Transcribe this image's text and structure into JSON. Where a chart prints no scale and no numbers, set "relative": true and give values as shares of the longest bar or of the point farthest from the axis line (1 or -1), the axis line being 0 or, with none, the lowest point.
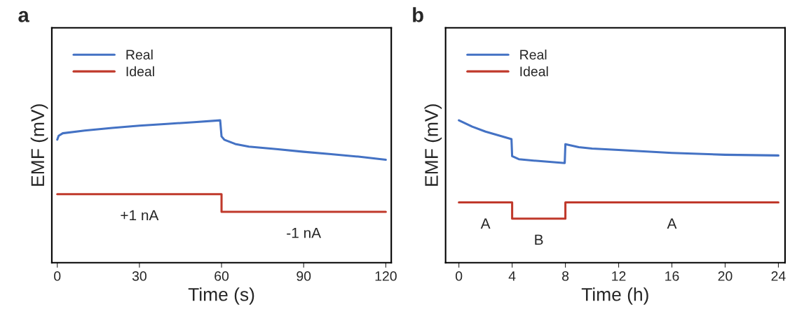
{
  "chart_data": [
    {
      "type": "line",
      "title": "a",
      "xlabel": "Time (s)",
      "ylabel": "EMF (mV)",
      "relative": true,
      "xlim": [
        -2,
        122
      ],
      "xticks": [
        0,
        30,
        60,
        90,
        120
      ],
      "legend": "top left",
      "grid": false,
      "series": [
        {
          "name": "Real",
          "color": "#4472c4",
          "x": [
            0,
            0.5,
            2,
            10,
            20,
            30,
            40,
            50,
            59.5,
            60,
            61,
            65,
            70,
            80,
            90,
            100,
            110,
            120
          ],
          "values": [
            0.864,
            0.891,
            0.909,
            0.928,
            0.947,
            0.962,
            0.975,
            0.987,
            1,
            0.887,
            0.864,
            0.834,
            0.815,
            0.798,
            0.779,
            0.762,
            0.745,
            0.723
          ]
        },
        {
          "name": "Ideal",
          "color": "#c0392b",
          "x": [
            0,
            60,
            60,
            120
          ],
          "values": [
            0.481,
            0.481,
            0.357,
            0.357
          ]
        }
      ],
      "annotations": [
        "+1 nA",
        "-1 nA"
      ]
    },
    {
      "type": "line",
      "title": "b",
      "xlabel": "Time (h)",
      "ylabel": "EMF (mV)",
      "relative": true,
      "xlim": [
        -1,
        24.5
      ],
      "xticks": [
        0,
        4,
        8,
        12,
        16,
        20,
        24
      ],
      "legend": "top left",
      "grid": false,
      "series": [
        {
          "name": "Real",
          "color": "#4472c4",
          "x": [
            0,
            1,
            2,
            3,
            3.95,
            4,
            4.5,
            6,
            7.95,
            8,
            9,
            10,
            12,
            16,
            20,
            24
          ],
          "values": [
            1,
            0.956,
            0.921,
            0.894,
            0.868,
            0.748,
            0.727,
            0.714,
            0.7,
            0.832,
            0.811,
            0.802,
            0.792,
            0.771,
            0.758,
            0.753
          ]
        },
        {
          "name": "Ideal",
          "color": "#c0392b",
          "x": [
            0,
            4,
            4,
            8,
            8,
            24
          ],
          "values": [
            0.423,
            0.423,
            0.309,
            0.309,
            0.423,
            0.423
          ]
        }
      ],
      "annotations": [
        "A",
        "B",
        "A"
      ]
    }
  ]
}
